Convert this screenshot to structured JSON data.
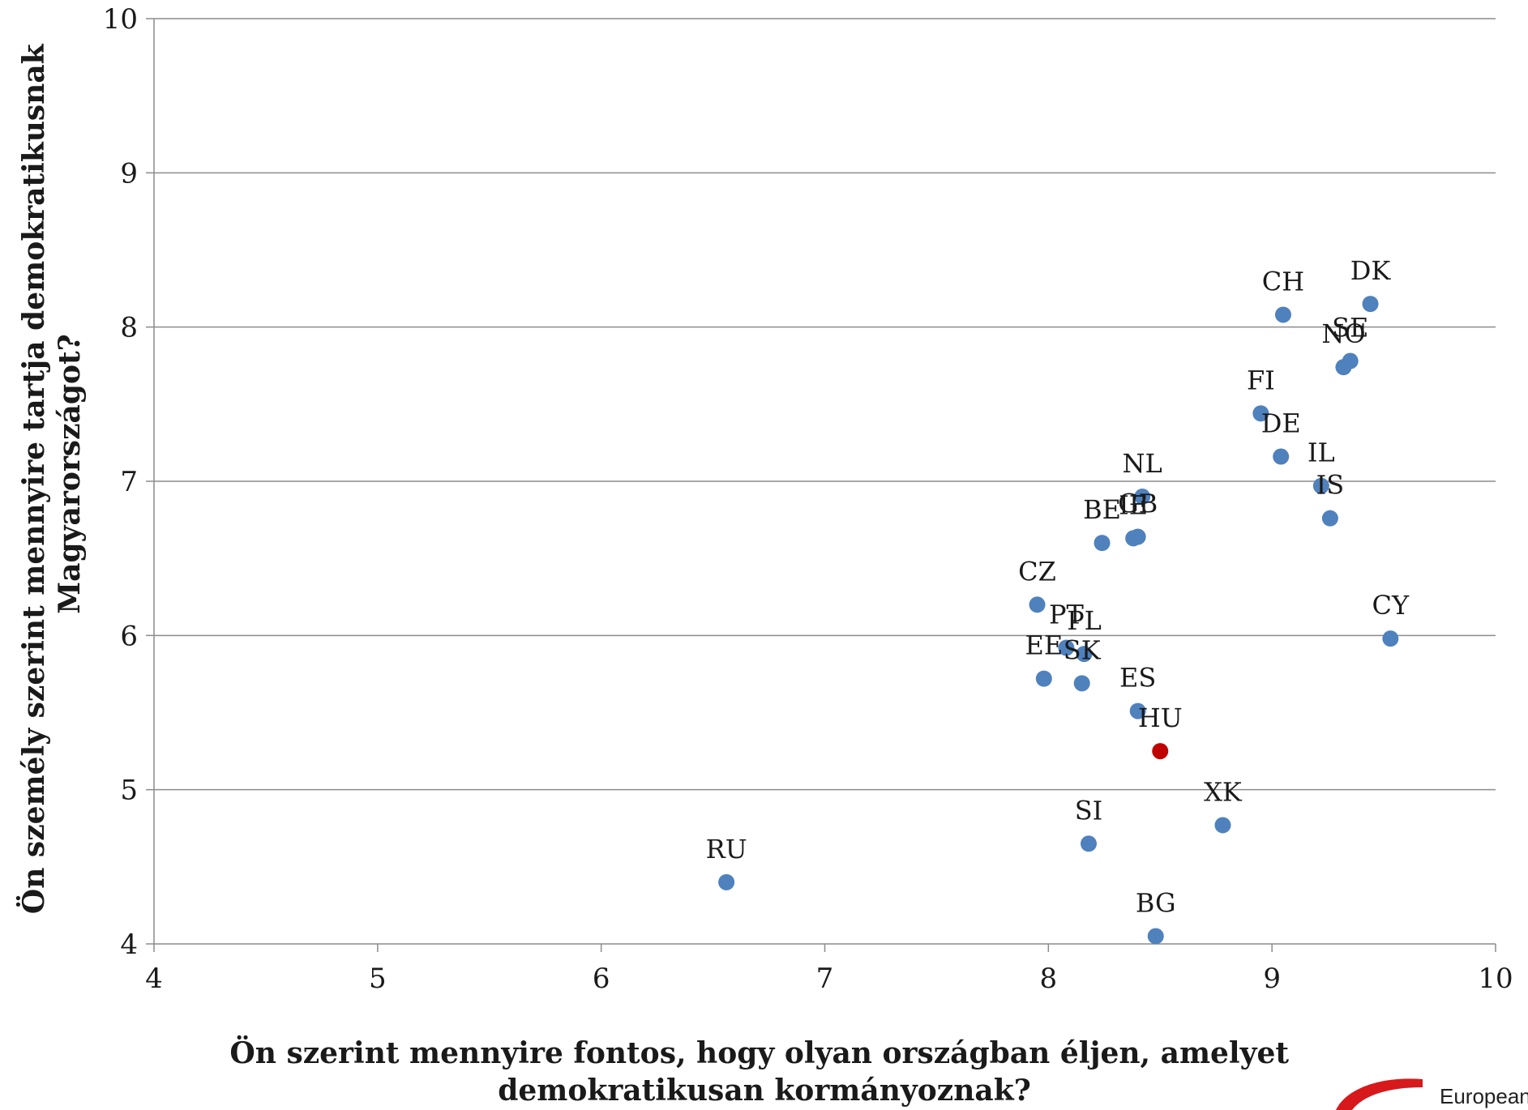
{
  "chart_data": {
    "type": "scatter",
    "title": "",
    "xlabel_lines": [
      "Ön szerint mennyire fontos, hogy olyan országban éljen, amelyet",
      "demokratikusan kormányoznak?"
    ],
    "ylabel_lines": [
      "Ön személy szerint mennyire tartja demokratikusnak",
      "Magyarországot?"
    ],
    "xlim": [
      4,
      10
    ],
    "ylim": [
      4,
      10
    ],
    "xticks": [
      4,
      5,
      6,
      7,
      8,
      9,
      10
    ],
    "yticks": [
      4,
      5,
      6,
      7,
      8,
      9,
      10
    ],
    "grid": "horizontal",
    "colors": {
      "default": "#4f81bd",
      "highlight": "#c00000",
      "grid": "#8c8c8c"
    },
    "points": [
      {
        "label": "DK",
        "x": 9.44,
        "y": 8.15
      },
      {
        "label": "CH",
        "x": 9.05,
        "y": 8.08
      },
      {
        "label": "SE",
        "x": 9.35,
        "y": 7.78
      },
      {
        "label": "NO",
        "x": 9.32,
        "y": 7.74
      },
      {
        "label": "FI",
        "x": 8.95,
        "y": 7.44
      },
      {
        "label": "DE",
        "x": 9.04,
        "y": 7.16
      },
      {
        "label": "IL",
        "x": 9.22,
        "y": 6.97
      },
      {
        "label": "IS",
        "x": 9.26,
        "y": 6.76
      },
      {
        "label": "NL",
        "x": 8.42,
        "y": 6.9
      },
      {
        "label": "GB",
        "x": 8.4,
        "y": 6.64
      },
      {
        "label": "IE",
        "x": 8.38,
        "y": 6.63
      },
      {
        "label": "BE",
        "x": 8.24,
        "y": 6.6
      },
      {
        "label": "CZ",
        "x": 7.95,
        "y": 6.2
      },
      {
        "label": "PT",
        "x": 8.08,
        "y": 5.92
      },
      {
        "label": "PL",
        "x": 8.16,
        "y": 5.88
      },
      {
        "label": "EE",
        "x": 7.98,
        "y": 5.72
      },
      {
        "label": "SK",
        "x": 8.15,
        "y": 5.69
      },
      {
        "label": "CY",
        "x": 9.53,
        "y": 5.98
      },
      {
        "label": "ES",
        "x": 8.4,
        "y": 5.51
      },
      {
        "label": "HU",
        "x": 8.5,
        "y": 5.25,
        "highlight": true
      },
      {
        "label": "XK",
        "x": 8.78,
        "y": 4.77
      },
      {
        "label": "SI",
        "x": 8.18,
        "y": 4.65
      },
      {
        "label": "RU",
        "x": 6.56,
        "y": 4.4
      },
      {
        "label": "BG",
        "x": 8.48,
        "y": 4.05
      }
    ]
  },
  "logo": {
    "text": "European"
  }
}
